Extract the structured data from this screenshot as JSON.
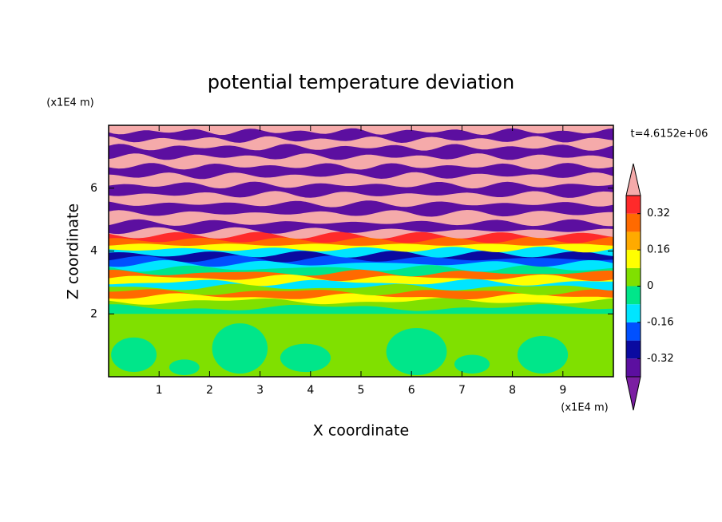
{
  "chart_data": {
    "type": "contour",
    "title": "potential temperature deviation",
    "x_label": "X coordinate",
    "y_label": "Z coordinate",
    "x_unit": "(x1E4 m)",
    "y_unit": "(x1E4 m)",
    "annotation": "t=4.6152e+06",
    "xlim": [
      0,
      10
    ],
    "xticks": [
      1,
      2,
      3,
      4,
      5,
      6,
      7,
      8,
      9
    ],
    "ylim": [
      0,
      8
    ],
    "yticks": [
      2,
      4,
      6
    ],
    "colorbar": {
      "levels": [
        -0.4,
        -0.32,
        -0.24,
        -0.16,
        -0.08,
        0,
        0.08,
        0.16,
        0.24,
        0.32,
        0.4
      ],
      "ticks": [
        -0.32,
        -0.16,
        0,
        0.16,
        0.32
      ],
      "colors": [
        "#7b1fa2",
        "#5c0fa0",
        "#0a0aa0",
        "#0050ff",
        "#00e5ff",
        "#00e68a",
        "#80e000",
        "#ffff00",
        "#ffaa00",
        "#ff6a00",
        "#ff2a2a",
        "#f5aaaa"
      ]
    }
  }
}
